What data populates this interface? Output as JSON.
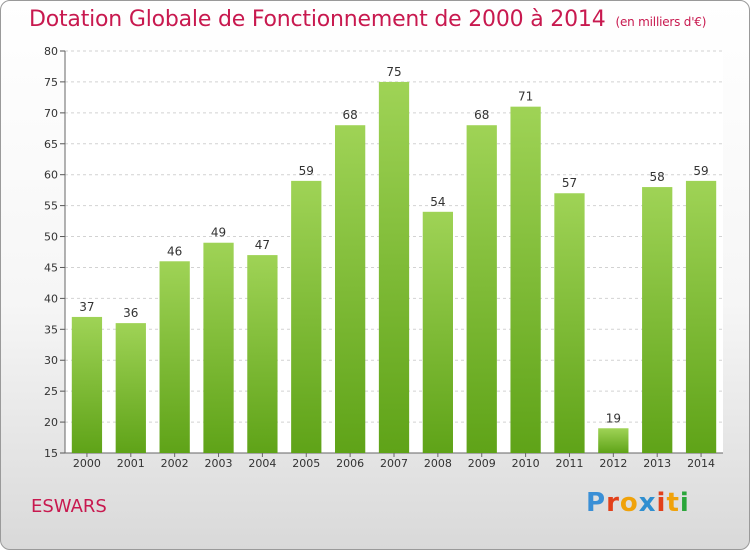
{
  "header": {
    "title": "Dotation Globale de Fonctionnement de 2000 à 2014",
    "subtitle": "(en milliers d'€)"
  },
  "commune": "ESWARS",
  "logo": {
    "text": "Proxiti",
    "colors": [
      "#3a8fd6",
      "#e2401a",
      "#f0a20a",
      "#2f8fd0",
      "#e2401a",
      "#f0a20a",
      "#2aa63a"
    ]
  },
  "chart_data": {
    "type": "bar",
    "categories": [
      "2000",
      "2001",
      "2002",
      "2003",
      "2004",
      "2005",
      "2006",
      "2007",
      "2008",
      "2009",
      "2010",
      "2011",
      "2012",
      "2013",
      "2014"
    ],
    "values": [
      37,
      36,
      46,
      49,
      47,
      59,
      68,
      75,
      54,
      68,
      71,
      57,
      19,
      58,
      59
    ],
    "ylim": [
      15,
      80
    ],
    "yticks": [
      15,
      20,
      25,
      30,
      35,
      40,
      45,
      50,
      55,
      60,
      65,
      70,
      75,
      80
    ],
    "grid": true,
    "bar_color_top": "#9fd356",
    "bar_color_bottom": "#5fa318"
  }
}
